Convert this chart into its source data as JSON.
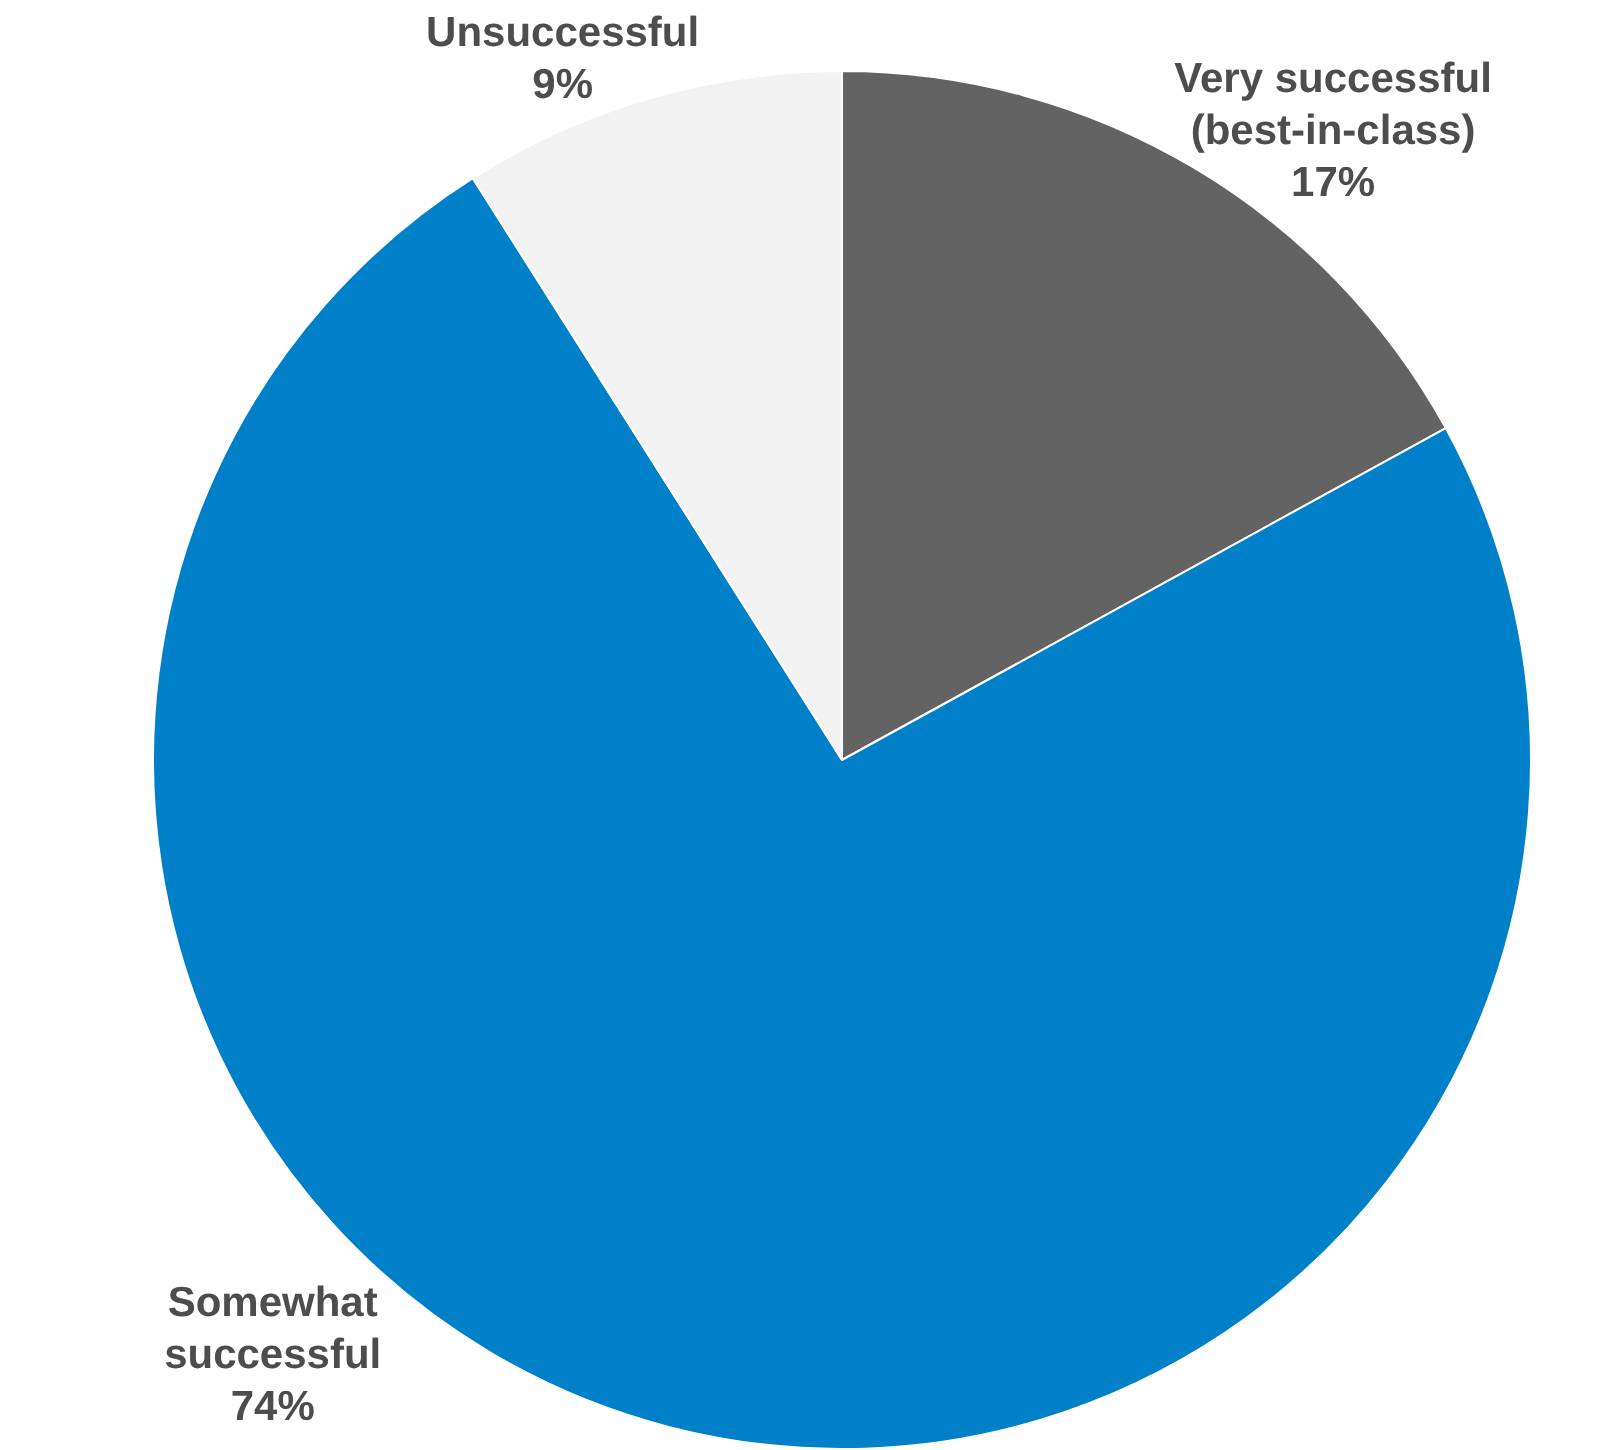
{
  "chart_data": {
    "type": "pie",
    "categories": [
      "Very successful (best-in-class)",
      "Somewhat successful",
      "Unsuccessful"
    ],
    "values": [
      17,
      74,
      9
    ],
    "colors": [
      "#636363",
      "#0080c8",
      "#f2f2f2"
    ],
    "value_labels": [
      "17%",
      "74%",
      "9%"
    ]
  }
}
